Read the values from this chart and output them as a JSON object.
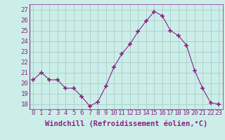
{
  "x": [
    0,
    1,
    2,
    3,
    4,
    5,
    6,
    7,
    8,
    9,
    10,
    11,
    12,
    13,
    14,
    15,
    16,
    17,
    18,
    19,
    20,
    21,
    22,
    23
  ],
  "y": [
    20.3,
    21.0,
    20.3,
    20.3,
    19.5,
    19.5,
    18.7,
    17.8,
    18.2,
    19.7,
    21.5,
    22.8,
    23.7,
    24.9,
    25.9,
    26.8,
    26.4,
    25.0,
    24.5,
    23.6,
    21.2,
    19.5,
    18.1,
    18.0
  ],
  "xlim": [
    -0.5,
    23.5
  ],
  "ylim": [
    17.5,
    27.5
  ],
  "yticks": [
    18,
    19,
    20,
    21,
    22,
    23,
    24,
    25,
    26,
    27
  ],
  "xtick_labels": [
    "0",
    "1",
    "2",
    "3",
    "4",
    "5",
    "6",
    "7",
    "8",
    "9",
    "10",
    "11",
    "12",
    "13",
    "14",
    "15",
    "16",
    "17",
    "18",
    "19",
    "20",
    "21",
    "22",
    "23"
  ],
  "xlabel": "Windchill (Refroidissement éolien,°C)",
  "line_color": "#882288",
  "marker": "+",
  "marker_size": 4,
  "bg_color": "#cceee8",
  "grid_color": "#aacccc",
  "tick_label_fontsize": 6.5,
  "xlabel_fontsize": 7.5
}
